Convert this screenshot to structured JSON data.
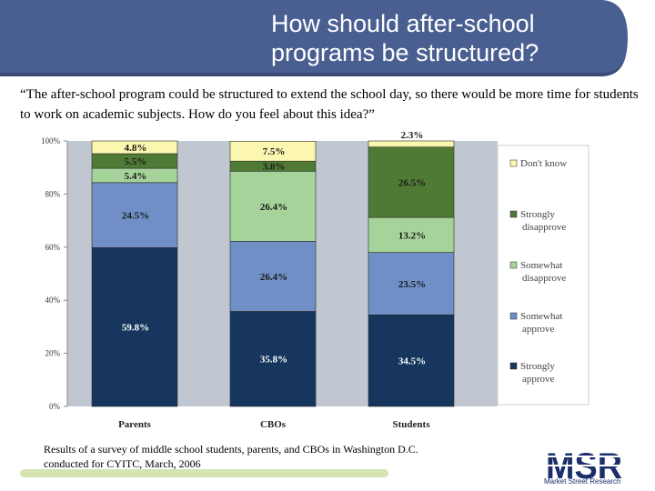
{
  "slide": {
    "title_line1": "How should after-school",
    "title_line2": "programs be structured?",
    "question": "“The after-school program could be structured to extend the school day, so there would be more time for students to work on academic subjects.  How do you feel about this idea?”",
    "footnote_line1": "Results of a survey of middle school students, parents, and CBOs in Washington D.C.",
    "footnote_line2": "conducted for CYITC, March, 2006",
    "logo_text": "MSR",
    "logo_caption": "Market Street Research"
  },
  "colors": {
    "banner": "#4a5f91",
    "plot_background": "#c0c7d1"
  },
  "chart_data": {
    "type": "bar",
    "stacked": true,
    "categories": [
      "Parents",
      "CBOs",
      "Students"
    ],
    "ylim": [
      0,
      100
    ],
    "yticks": [
      "0%",
      "20%",
      "40%",
      "60%",
      "80%",
      "100%"
    ],
    "grid": false,
    "legend_position": "right",
    "series": [
      {
        "name": "Strongly approve",
        "values": [
          59.8,
          35.8,
          34.5
        ],
        "labels": [
          "59.8%",
          "35.8%",
          "34.5%"
        ],
        "color": "#17365d",
        "label_color": "#ffffff"
      },
      {
        "name": "Somewhat approve",
        "values": [
          24.5,
          26.4,
          23.5
        ],
        "labels": [
          "24.5%",
          "26.4%",
          "23.5%"
        ],
        "color": "#6f8fc6",
        "label_color": "#1a1a1a"
      },
      {
        "name": "Somewhat disapprove",
        "values": [
          5.4,
          26.4,
          13.2
        ],
        "labels": [
          "5.4%",
          "26.4%",
          "13.2%"
        ],
        "color": "#a6d39a",
        "label_color": "#1a1a1a"
      },
      {
        "name": "Strongly disapprove",
        "values": [
          5.5,
          3.8,
          26.5
        ],
        "labels": [
          "5.5%",
          "3.8%",
          "26.5%"
        ],
        "color": "#4f7a35",
        "label_color": "#1a1a1a"
      },
      {
        "name": "Don't know",
        "values": [
          4.8,
          7.5,
          2.3
        ],
        "labels": [
          "4.8%",
          "7.5%",
          "2.3%"
        ],
        "color": "#fbf7b0",
        "label_color": "#1a1a1a"
      }
    ],
    "legend_labels": [
      [
        "Don't know"
      ],
      [
        "Strongly",
        "disapprove"
      ],
      [
        "Somewhat",
        "disapprove"
      ],
      [
        "Somewhat",
        "approve"
      ],
      [
        "Strongly",
        "approve"
      ]
    ]
  }
}
